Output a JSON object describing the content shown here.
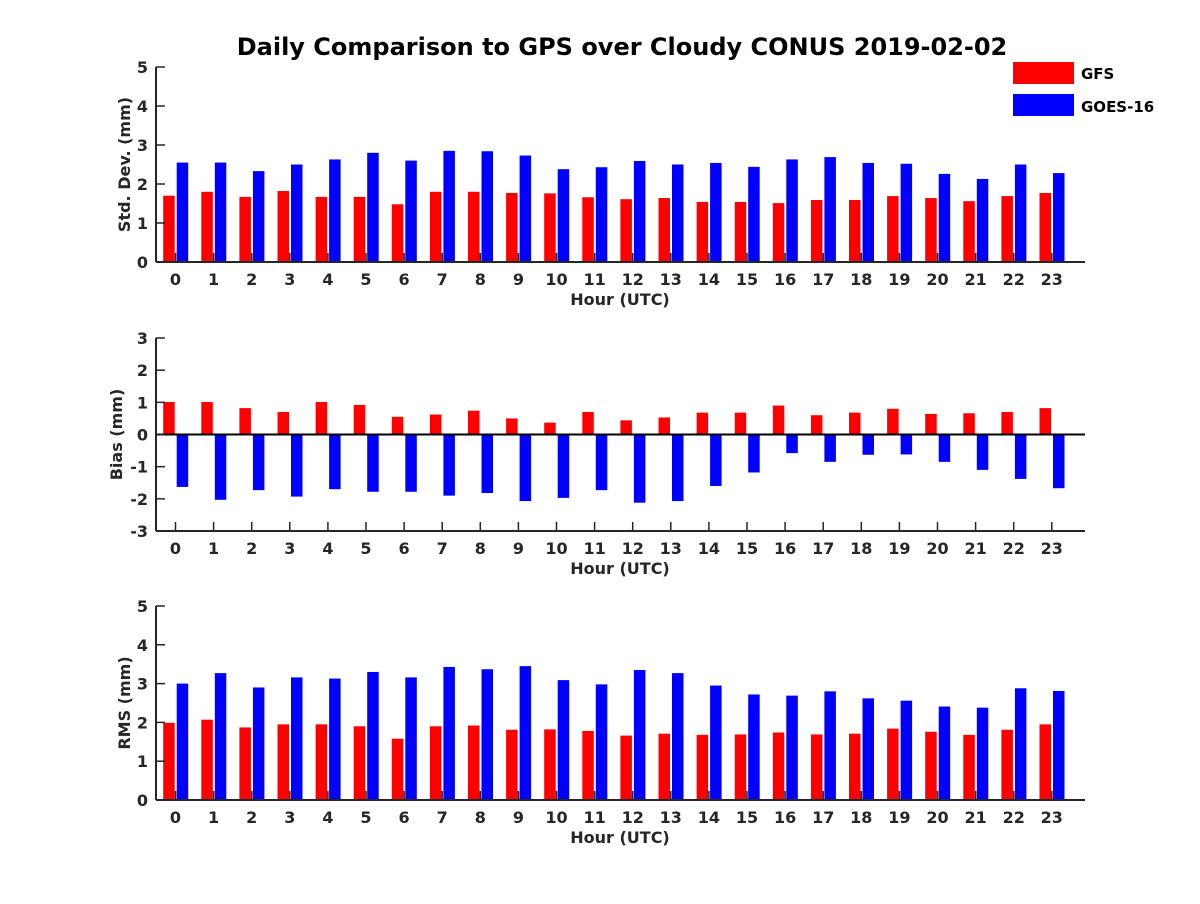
{
  "title": "Daily Comparison to GPS over Cloudy CONUS 2019-02-02",
  "colors": {
    "GFS": "#ff0000",
    "GOES-16": "#0000ff",
    "axis": "#262626"
  },
  "legend": {
    "placement": "top-right",
    "entries": [
      "GFS",
      "GOES-16"
    ]
  },
  "chart_data": [
    {
      "type": "bar",
      "xlabel": "Hour (UTC)",
      "ylabel": "Std. Dev. (mm)",
      "ylim": [
        0,
        5
      ],
      "yticks": [
        0,
        1,
        2,
        3,
        4,
        5
      ],
      "grid": false,
      "categories": [
        "0",
        "1",
        "2",
        "3",
        "4",
        "5",
        "6",
        "7",
        "8",
        "9",
        "10",
        "11",
        "12",
        "13",
        "14",
        "15",
        "16",
        "17",
        "18",
        "19",
        "20",
        "21",
        "22",
        "23"
      ],
      "series": [
        {
          "name": "GFS",
          "values": [
            1.7,
            1.8,
            1.67,
            1.82,
            1.67,
            1.67,
            1.48,
            1.8,
            1.8,
            1.77,
            1.76,
            1.66,
            1.61,
            1.64,
            1.54,
            1.54,
            1.51,
            1.59,
            1.59,
            1.69,
            1.64,
            1.56,
            1.69,
            1.77
          ]
        },
        {
          "name": "GOES-16",
          "values": [
            2.55,
            2.55,
            2.33,
            2.5,
            2.63,
            2.8,
            2.6,
            2.85,
            2.84,
            2.73,
            2.38,
            2.43,
            2.59,
            2.5,
            2.54,
            2.44,
            2.63,
            2.69,
            2.54,
            2.52,
            2.26,
            2.13,
            2.5,
            2.28
          ]
        }
      ]
    },
    {
      "type": "bar",
      "xlabel": "Hour (UTC)",
      "ylabel": "Bias (mm)",
      "ylim": [
        -3,
        3
      ],
      "yticks": [
        -3,
        -2,
        -1,
        0,
        1,
        2,
        3
      ],
      "grid": false,
      "categories": [
        "0",
        "1",
        "2",
        "3",
        "4",
        "5",
        "6",
        "7",
        "8",
        "9",
        "10",
        "11",
        "12",
        "13",
        "14",
        "15",
        "16",
        "17",
        "18",
        "19",
        "20",
        "21",
        "22",
        "23"
      ],
      "series": [
        {
          "name": "GFS",
          "values": [
            1.01,
            1.01,
            0.82,
            0.7,
            1.01,
            0.92,
            0.55,
            0.62,
            0.74,
            0.5,
            0.37,
            0.7,
            0.44,
            0.53,
            0.68,
            0.68,
            0.9,
            0.6,
            0.68,
            0.8,
            0.64,
            0.66,
            0.7,
            0.82
          ]
        },
        {
          "name": "GOES-16",
          "values": [
            -1.63,
            -2.03,
            -1.73,
            -1.93,
            -1.7,
            -1.78,
            -1.78,
            -1.9,
            -1.82,
            -2.07,
            -1.97,
            -1.73,
            -2.12,
            -2.07,
            -1.6,
            -1.18,
            -0.58,
            -0.85,
            -0.63,
            -0.62,
            -0.85,
            -1.1,
            -1.38,
            -1.67
          ]
        }
      ]
    },
    {
      "type": "bar",
      "xlabel": "Hour (UTC)",
      "ylabel": "RMS (mm)",
      "ylim": [
        0,
        5
      ],
      "yticks": [
        0,
        1,
        2,
        3,
        4,
        5
      ],
      "grid": false,
      "categories": [
        "0",
        "1",
        "2",
        "3",
        "4",
        "5",
        "6",
        "7",
        "8",
        "9",
        "10",
        "11",
        "12",
        "13",
        "14",
        "15",
        "16",
        "17",
        "18",
        "19",
        "20",
        "21",
        "22",
        "23"
      ],
      "series": [
        {
          "name": "GFS",
          "values": [
            1.99,
            2.07,
            1.87,
            1.95,
            1.95,
            1.9,
            1.58,
            1.9,
            1.92,
            1.81,
            1.82,
            1.78,
            1.66,
            1.71,
            1.68,
            1.69,
            1.74,
            1.69,
            1.71,
            1.84,
            1.76,
            1.68,
            1.81,
            1.95
          ]
        },
        {
          "name": "GOES-16",
          "values": [
            3.0,
            3.27,
            2.9,
            3.16,
            3.13,
            3.3,
            3.16,
            3.43,
            3.37,
            3.45,
            3.09,
            2.98,
            3.35,
            3.27,
            2.95,
            2.72,
            2.69,
            2.8,
            2.62,
            2.56,
            2.41,
            2.38,
            2.88,
            2.81
          ]
        }
      ]
    }
  ]
}
